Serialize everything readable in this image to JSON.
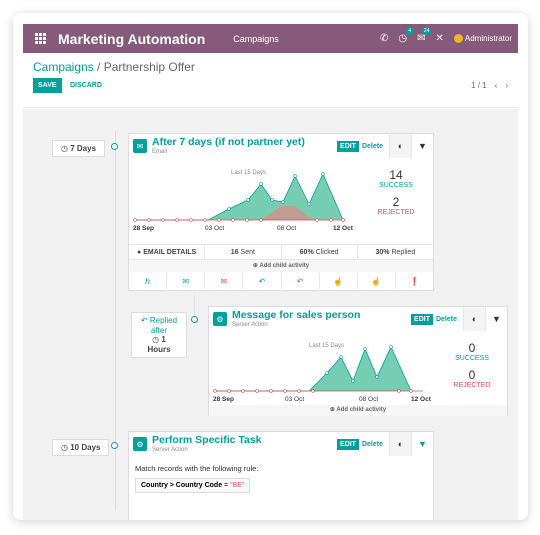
{
  "topbar": {
    "app_title": "Marketing Automation",
    "menu": "Campaigns",
    "discuss_badge": "24",
    "activity_badge": "4",
    "user": "Administrator"
  },
  "control": {
    "breadcrumb_link": "Campaigns",
    "breadcrumb_sep": "/",
    "breadcrumb_current": "Partnership Offer",
    "save": "SAVE",
    "discard": "DISCARD",
    "pager": "1 / 1"
  },
  "activities": [
    {
      "delay": "7 Days",
      "title": "After 7 days (if not partner yet)",
      "type": "Email",
      "success": "14",
      "success_label": "SUCCESS",
      "rejected": "2",
      "rejected_label": "REJECTED",
      "chart_note": "Last 15 Days",
      "x_ticks": [
        "28 Sep",
        "03 Oct",
        "08 Oct",
        "12 Oct"
      ],
      "details": {
        "email_details": "EMAIL DETAILS",
        "sent_num": "16",
        "sent": "Sent",
        "clicked_num": "60%",
        "clicked": "Clicked",
        "replied_num": "30%",
        "replied": "Replied"
      },
      "add_child": "Add child activity"
    },
    {
      "trigger": "Replied after",
      "delay": "1 Hours",
      "title": "Message for sales person",
      "type": "Server Action",
      "success": "0",
      "success_label": "SUCCESS",
      "rejected": "0",
      "rejected_label": "REJECTED",
      "chart_note": "Last 15 Days",
      "x_ticks": [
        "28 Sep",
        "03 Oct",
        "08 Oct",
        "12 Oct"
      ],
      "add_child": "Add child activity"
    },
    {
      "delay": "10 Days",
      "title": "Perform Specific Task",
      "type": "Server Action",
      "rule_text": "Match records with the following rule:",
      "rule_field": "Country > Country Code",
      "rule_op": "=",
      "rule_value": "\"BE\""
    }
  ],
  "buttons": {
    "edit": "EDIT",
    "delete": "Delete"
  },
  "colors": {
    "brand": "#875a7b",
    "accent": "#00a09d",
    "danger": "#d9534f"
  }
}
